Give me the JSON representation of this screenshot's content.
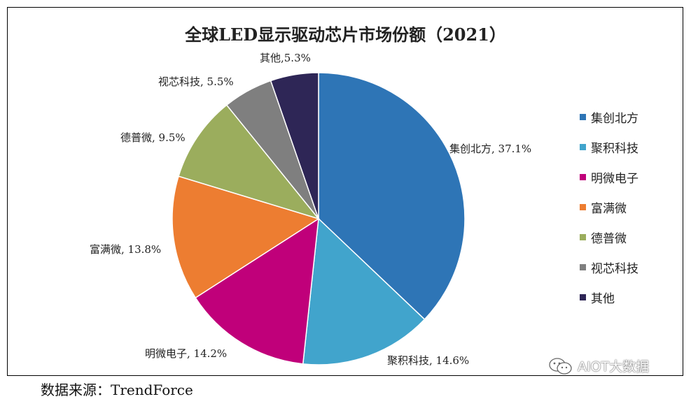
{
  "chart_data": {
    "type": "pie",
    "title": "全球LED显示驱动芯片市场份额（2021）",
    "categories": [
      "集创北方",
      "聚积科技",
      "明微电子",
      "富满微",
      "德普微",
      "视芯科技",
      "其他"
    ],
    "values": [
      37.1,
      14.6,
      14.2,
      13.8,
      9.5,
      5.5,
      5.3
    ],
    "data_labels": [
      "集创北方, 37.1%",
      "聚积科技, 14.6%",
      "明微电子, 14.2%",
      "富满微, 13.8%",
      "德普微, 9.5%",
      "视芯科技, 5.5%",
      "其他,5.3%"
    ],
    "colors": [
      "#2e75b6",
      "#41a4cc",
      "#c0007a",
      "#ed7d31",
      "#9bad5d",
      "#7f7f7f",
      "#2e2656"
    ],
    "legend": {
      "position": "right",
      "entries": [
        "集创北方",
        "聚积科技",
        "明微电子",
        "富满微",
        "德普微",
        "视芯科技",
        "其他"
      ]
    }
  },
  "source": "数据来源：TrendForce",
  "watermark": {
    "text": "AIOT大数据",
    "icon": "wechat-icon"
  }
}
